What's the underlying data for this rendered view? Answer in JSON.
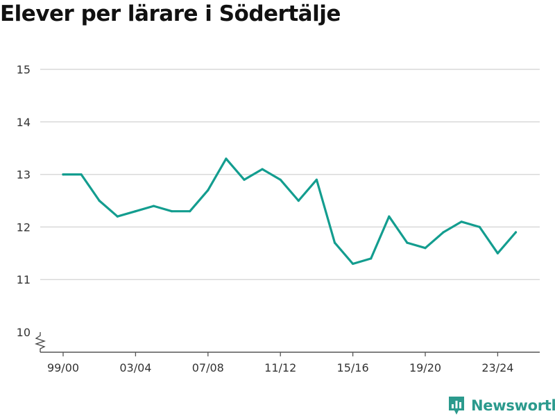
{
  "chart_data": {
    "type": "line",
    "title": "Elever per lärare i Södertälje",
    "x_tick_labels": [
      "99/00",
      "03/04",
      "07/08",
      "11/12",
      "15/16",
      "19/20",
      "23/24"
    ],
    "y_tick_labels": [
      "10",
      "11",
      "12",
      "13",
      "14",
      "15"
    ],
    "ylim": [
      10,
      15
    ],
    "grid": true,
    "line_color": "#139d8f",
    "series": [
      {
        "x": [
          "99/00",
          "00/01",
          "01/02",
          "02/03",
          "03/04",
          "04/05",
          "05/06",
          "06/07",
          "07/08",
          "08/09",
          "09/10",
          "10/11",
          "11/12",
          "12/13",
          "13/14",
          "14/15",
          "15/16",
          "16/17",
          "17/18",
          "18/19",
          "19/20",
          "20/21",
          "21/22",
          "22/23",
          "23/24",
          "24/25"
        ],
        "values": [
          13.0,
          13.0,
          12.5,
          12.2,
          12.3,
          12.4,
          12.3,
          12.3,
          12.7,
          13.3,
          12.9,
          13.1,
          12.9,
          12.5,
          12.9,
          11.7,
          11.3,
          11.4,
          12.2,
          11.7,
          11.6,
          11.9,
          12.1,
          12.0,
          11.5,
          11.9
        ]
      }
    ]
  },
  "brand": {
    "name": "Newsworthy",
    "logo_icon": "bar-chart-badge-icon",
    "color": "#2b9a8d"
  }
}
